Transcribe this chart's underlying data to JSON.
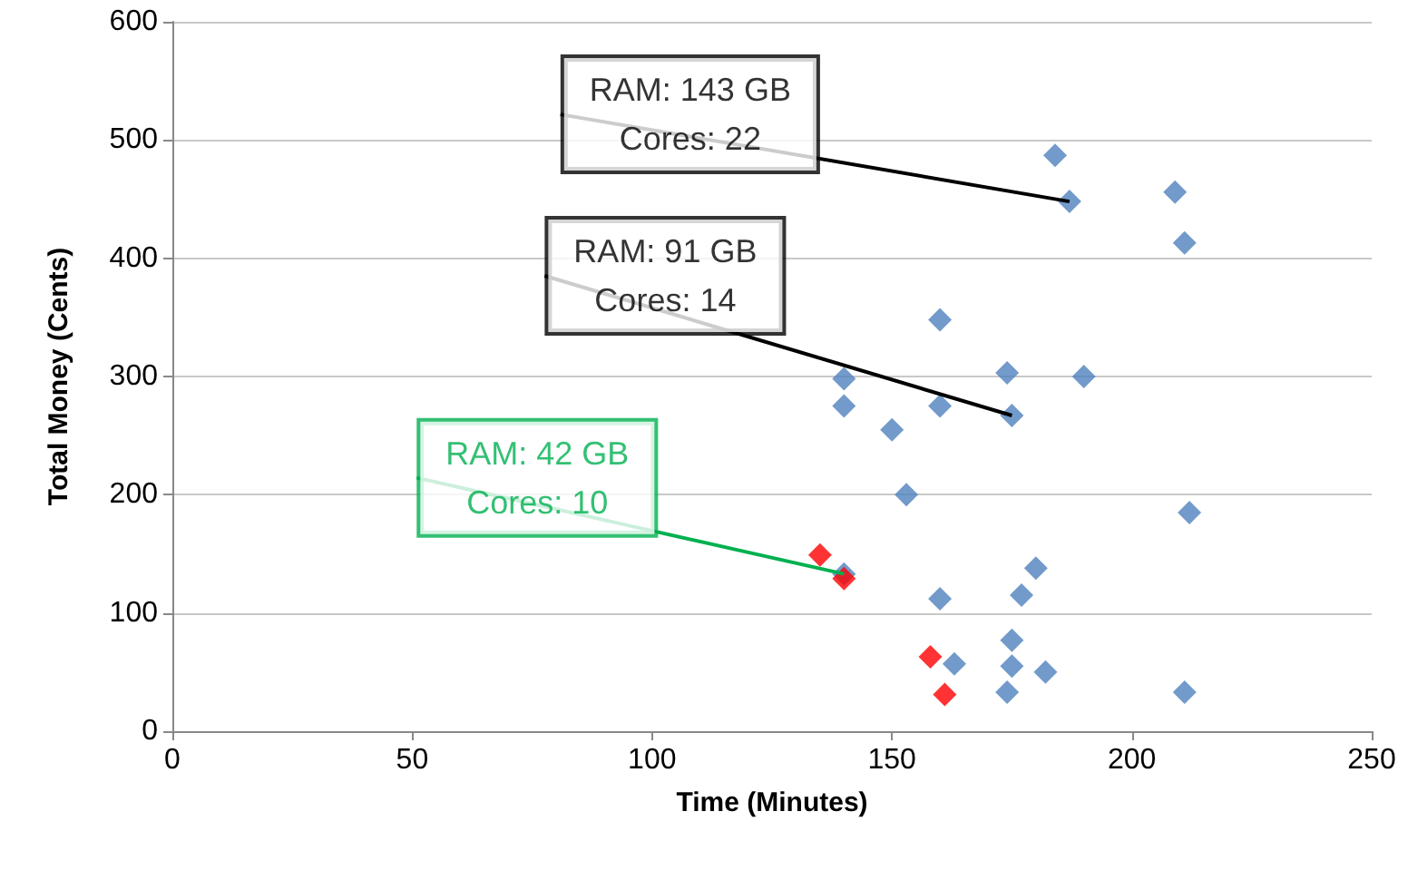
{
  "chart_data": {
    "type": "scatter",
    "xlabel": "Time (Minutes)",
    "ylabel": "Total Money (Cents)",
    "xlim": [
      0,
      250
    ],
    "xticks": [
      0,
      50,
      100,
      150,
      200,
      250
    ],
    "ylim": [
      0,
      600
    ],
    "yticks": [
      0,
      100,
      200,
      300,
      400,
      500,
      600
    ],
    "grid": "y",
    "marker": "diamond",
    "series": [
      {
        "color": "#4f81bd",
        "x": [
          184,
          187,
          209,
          211,
          160,
          174,
          190,
          140,
          140,
          160,
          150,
          175,
          153,
          212,
          180,
          177,
          160,
          140,
          175,
          175,
          163,
          182,
          174,
          211
        ],
        "values": [
          487,
          448,
          456,
          413,
          348,
          303,
          300,
          298,
          275,
          275,
          255,
          267,
          200,
          185,
          138,
          115,
          112,
          133,
          77,
          55,
          57,
          50,
          33,
          33
        ]
      },
      {
        "color": "#ff0000",
        "x": [
          135,
          140,
          158,
          161
        ],
        "values": [
          149,
          129,
          63,
          31
        ]
      }
    ],
    "annotations": [
      {
        "text": "RAM: 143 GB\nCores: 22",
        "x": 187,
        "y": 448
      },
      {
        "text": "RAM: 91 GB\nCores: 14",
        "x": 175,
        "y": 267
      },
      {
        "text": "RAM: 42 GB\nCores: 10",
        "x": 140,
        "y": 133
      }
    ]
  }
}
